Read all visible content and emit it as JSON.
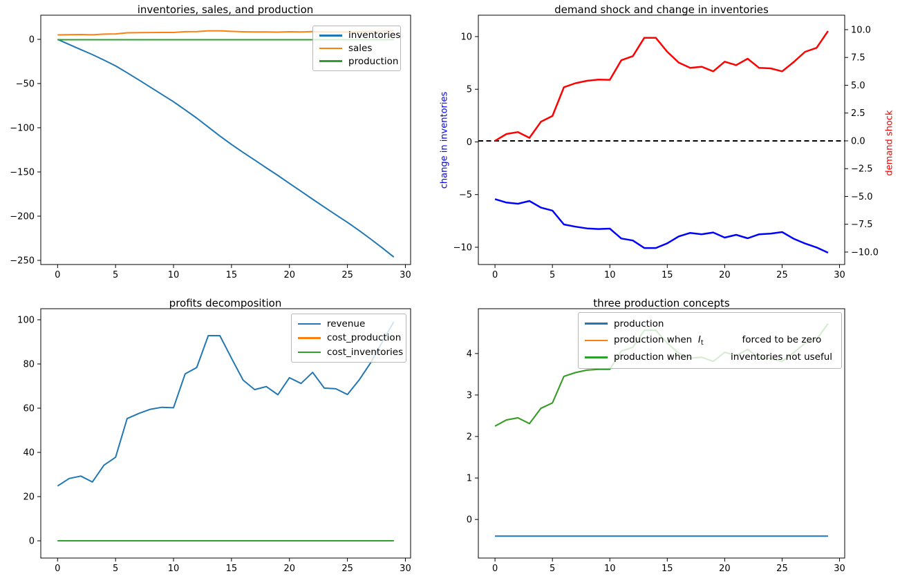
{
  "figure": {
    "background": "#ffffff"
  },
  "palette": {
    "blue": "#1f77b4",
    "orange": "#ff7f0e",
    "green": "#2ca02c",
    "pure_blue": "#0000ff",
    "pure_red": "#ff0000",
    "black": "#000000"
  },
  "chart_data": [
    {
      "id": "inventories-sales-production",
      "type": "line",
      "title": "inventories, sales, and production",
      "x": [
        0,
        1,
        2,
        3,
        4,
        5,
        6,
        7,
        8,
        9,
        10,
        11,
        12,
        13,
        14,
        15,
        16,
        17,
        18,
        19,
        20,
        21,
        22,
        23,
        24,
        25,
        26,
        27,
        28,
        29
      ],
      "x_axis": {
        "range": [
          -1.45,
          30.45
        ],
        "ticks": [
          {
            "v": 0,
            "label": "0"
          },
          {
            "v": 5,
            "label": "5"
          },
          {
            "v": 10,
            "label": "10"
          },
          {
            "v": 15,
            "label": "15"
          },
          {
            "v": 20,
            "label": "20"
          },
          {
            "v": 25,
            "label": "25"
          },
          {
            "v": 30,
            "label": "30"
          }
        ]
      },
      "axes": [
        {
          "side": "left",
          "range": [
            -254.7,
            27.3
          ],
          "ticks": [
            {
              "v": 0,
              "label": "0"
            },
            {
              "v": -50,
              "label": "−50"
            },
            {
              "v": -100,
              "label": "−100"
            },
            {
              "v": -150,
              "label": "−150"
            },
            {
              "v": -200,
              "label": "−200"
            },
            {
              "v": -250,
              "label": "−250"
            }
          ]
        }
      ],
      "series": [
        {
          "name": "inventories",
          "color": "#1f77b4",
          "axis": 0,
          "width": 2,
          "values": [
            0,
            -5.8,
            -11.6,
            -17.2,
            -23.5,
            -30.0,
            -37.8,
            -45.9,
            -54.1,
            -62.4,
            -70.6,
            -79.8,
            -89.1,
            -99.2,
            -109.3,
            -118.9,
            -127.9,
            -136.5,
            -145.3,
            -153.9,
            -163.0,
            -171.8,
            -180.9,
            -189.7,
            -198.4,
            -207.0,
            -216.2,
            -225.8,
            -235.8,
            -246.3
          ]
        },
        {
          "name": "sales",
          "color": "#ff7f0e",
          "axis": 0,
          "width": 2,
          "values": [
            5.0,
            5.31,
            5.4,
            5.13,
            5.86,
            6.12,
            7.41,
            7.59,
            7.7,
            7.75,
            7.75,
            8.62,
            8.81,
            9.63,
            9.63,
            9.0,
            8.52,
            8.28,
            8.33,
            8.13,
            8.56,
            8.4,
            8.7,
            8.28,
            8.26,
            8.13,
            8.54,
            9.0,
            9.18,
            9.94
          ]
        },
        {
          "name": "production",
          "color": "#2ca02c",
          "axis": 0,
          "width": 2,
          "values": [
            -0.4,
            -0.4,
            -0.4,
            -0.4,
            -0.4,
            -0.4,
            -0.4,
            -0.4,
            -0.4,
            -0.4,
            -0.4,
            -0.4,
            -0.4,
            -0.4,
            -0.4,
            -0.4,
            -0.4,
            -0.4,
            -0.4,
            -0.4,
            -0.4,
            -0.4,
            -0.4,
            -0.4,
            -0.4,
            -0.4,
            -0.4,
            -0.4,
            -0.4,
            -0.4
          ]
        }
      ],
      "legend": {
        "position": "upper right",
        "entries": [
          {
            "label": "inventories",
            "color": "#1f77b4"
          },
          {
            "label": "sales",
            "color": "#ff7f0e"
          },
          {
            "label": "production",
            "color": "#2ca02c"
          }
        ]
      }
    },
    {
      "id": "demand-shock-change-in-inventories",
      "type": "line",
      "title": "demand shock and change in inventories",
      "x": [
        0,
        1,
        2,
        3,
        4,
        5,
        6,
        7,
        8,
        9,
        10,
        11,
        12,
        13,
        14,
        15,
        16,
        17,
        18,
        19,
        20,
        21,
        22,
        23,
        24,
        25,
        26,
        27,
        28,
        29
      ],
      "x_axis": {
        "range": [
          -1.45,
          30.45
        ],
        "ticks": [
          {
            "v": 0,
            "label": "0"
          },
          {
            "v": 5,
            "label": "5"
          },
          {
            "v": 10,
            "label": "10"
          },
          {
            "v": 15,
            "label": "15"
          },
          {
            "v": 20,
            "label": "20"
          },
          {
            "v": 25,
            "label": "25"
          },
          {
            "v": 30,
            "label": "30"
          }
        ]
      },
      "axes": [
        {
          "side": "left",
          "range": [
            -11.64,
            12.03
          ],
          "label": "change in inventories",
          "label_color": "#0000ff",
          "ticks": [
            {
              "v": 10,
              "label": "10"
            },
            {
              "v": 5,
              "label": "5"
            },
            {
              "v": 0,
              "label": "0"
            },
            {
              "v": -5,
              "label": "−5"
            },
            {
              "v": -10,
              "label": "−10"
            }
          ]
        },
        {
          "side": "right",
          "range": [
            -11.12,
            11.3
          ],
          "label": "demand shock",
          "label_color": "#ff0000",
          "ticks": [
            {
              "v": 10,
              "label": "10.0"
            },
            {
              "v": 7.5,
              "label": "7.5"
            },
            {
              "v": 5,
              "label": "5.0"
            },
            {
              "v": 2.5,
              "label": "2.5"
            },
            {
              "v": 0,
              "label": "0.0"
            },
            {
              "v": -2.5,
              "label": "−2.5"
            },
            {
              "v": -5,
              "label": "−5.0"
            },
            {
              "v": -7.5,
              "label": "−7.5"
            },
            {
              "v": -10,
              "label": "−10.0"
            }
          ]
        }
      ],
      "zero_line": {
        "value": 0,
        "axis": 1,
        "color": "#000000",
        "dashed": true,
        "width": 2
      },
      "series": [
        {
          "name": "change in inventories",
          "color": "#0000ff",
          "axis": 0,
          "width": 2.5,
          "values": [
            -5.43,
            -5.76,
            -5.87,
            -5.61,
            -6.24,
            -6.52,
            -7.84,
            -8.05,
            -8.21,
            -8.27,
            -8.23,
            -9.17,
            -9.36,
            -10.07,
            -10.07,
            -9.63,
            -8.97,
            -8.64,
            -8.77,
            -8.6,
            -9.08,
            -8.82,
            -9.15,
            -8.77,
            -8.71,
            -8.56,
            -9.19,
            -9.65,
            -10.02,
            -10.52
          ]
        },
        {
          "name": "demand shock",
          "color": "#ff0000",
          "axis": 1,
          "width": 2.5,
          "values": [
            0.0,
            0.62,
            0.79,
            0.27,
            1.72,
            2.24,
            4.82,
            5.18,
            5.4,
            5.51,
            5.49,
            7.25,
            7.62,
            9.27,
            9.27,
            8.01,
            7.04,
            6.56,
            6.67,
            6.25,
            7.12,
            6.81,
            7.39,
            6.56,
            6.52,
            6.25,
            7.08,
            8.01,
            8.36,
            9.88
          ]
        }
      ]
    },
    {
      "id": "profits-decomposition",
      "type": "line",
      "title": "profits decomposition",
      "x": [
        0,
        1,
        2,
        3,
        4,
        5,
        6,
        7,
        8,
        9,
        10,
        11,
        12,
        13,
        14,
        15,
        16,
        17,
        18,
        19,
        20,
        21,
        22,
        23,
        24,
        25,
        26,
        27,
        28,
        29
      ],
      "x_axis": {
        "range": [
          -1.45,
          30.45
        ],
        "ticks": [
          {
            "v": 0,
            "label": "0"
          },
          {
            "v": 5,
            "label": "5"
          },
          {
            "v": 10,
            "label": "10"
          },
          {
            "v": 15,
            "label": "15"
          },
          {
            "v": 20,
            "label": "20"
          },
          {
            "v": 25,
            "label": "25"
          },
          {
            "v": 30,
            "label": "30"
          }
        ]
      },
      "axes": [
        {
          "side": "left",
          "range": [
            -7.8,
            105
          ],
          "ticks": [
            {
              "v": 0,
              "label": "0"
            },
            {
              "v": 20,
              "label": "20"
            },
            {
              "v": 40,
              "label": "40"
            },
            {
              "v": 60,
              "label": "60"
            },
            {
              "v": 80,
              "label": "80"
            },
            {
              "v": 100,
              "label": "100"
            }
          ]
        }
      ],
      "series": [
        {
          "name": "revenue",
          "color": "#1f77b4",
          "axis": 0,
          "width": 2,
          "values": [
            24.8,
            28.2,
            29.3,
            26.6,
            34.2,
            37.8,
            55.3,
            57.6,
            59.5,
            60.4,
            60.2,
            75.5,
            78.4,
            92.8,
            92.8,
            82.6,
            72.7,
            68.4,
            69.8,
            66.1,
            73.8,
            71.2,
            76.2,
            69.1,
            68.8,
            66.2,
            72.7,
            80.5,
            89.9,
            99.1
          ]
        },
        {
          "name": "cost_production",
          "color": "#ff7f0e",
          "axis": 0,
          "width": 2,
          "values": [
            0,
            0,
            0,
            0,
            0,
            0,
            0,
            0,
            0,
            0,
            0,
            0,
            0,
            0,
            0,
            0,
            0,
            0,
            0,
            0,
            0,
            0,
            0,
            0,
            0,
            0,
            0,
            0,
            0,
            0
          ]
        },
        {
          "name": "cost_inventories",
          "color": "#2ca02c",
          "axis": 0,
          "width": 2,
          "values": [
            0,
            0,
            0,
            0,
            0,
            0,
            0,
            0,
            0,
            0,
            0,
            0,
            0,
            0,
            0,
            0,
            0,
            0,
            0,
            0,
            0,
            0,
            0,
            0,
            0,
            0,
            0,
            0,
            0,
            0
          ]
        }
      ],
      "legend": {
        "position": "upper right",
        "entries": [
          {
            "label": "revenue",
            "color": "#1f77b4"
          },
          {
            "label": "cost_production",
            "color": "#ff7f0e"
          },
          {
            "label": "cost_inventories",
            "color": "#2ca02c"
          }
        ]
      }
    },
    {
      "id": "three-production-concepts",
      "type": "line",
      "title": "three production concepts",
      "x": [
        0,
        1,
        2,
        3,
        4,
        5,
        6,
        7,
        8,
        9,
        10,
        11,
        12,
        13,
        14,
        15,
        16,
        17,
        18,
        19,
        20,
        21,
        22,
        23,
        24,
        25,
        26,
        27,
        28,
        29
      ],
      "x_axis": {
        "range": [
          -1.45,
          30.45
        ],
        "ticks": [
          {
            "v": 0,
            "label": "0"
          },
          {
            "v": 5,
            "label": "5"
          },
          {
            "v": 10,
            "label": "10"
          },
          {
            "v": 15,
            "label": "15"
          },
          {
            "v": 20,
            "label": "20"
          },
          {
            "v": 25,
            "label": "25"
          },
          {
            "v": 30,
            "label": "30"
          }
        ]
      },
      "axes": [
        {
          "side": "left",
          "range": [
            -0.93,
            5.08
          ],
          "ticks": [
            {
              "v": 0,
              "label": "0"
            },
            {
              "v": 1,
              "label": "1"
            },
            {
              "v": 2,
              "label": "2"
            },
            {
              "v": 3,
              "label": "3"
            },
            {
              "v": 4,
              "label": "4"
            }
          ]
        }
      ],
      "series": [
        {
          "name": "production",
          "color": "#1f77b4",
          "axis": 0,
          "width": 2,
          "values": [
            -0.4,
            -0.4,
            -0.4,
            -0.4,
            -0.4,
            -0.4,
            -0.4,
            -0.4,
            -0.4,
            -0.4,
            -0.4,
            -0.4,
            -0.4,
            -0.4,
            -0.4,
            -0.4,
            -0.4,
            -0.4,
            -0.4,
            -0.4,
            -0.4,
            -0.4,
            -0.4,
            -0.4,
            -0.4,
            -0.4,
            -0.4,
            -0.4,
            -0.4,
            -0.4
          ]
        },
        {
          "name": "production when I_t forced to be zero",
          "color": "#ff7f0e",
          "axis": 0,
          "width": 2,
          "values": [
            2.25,
            2.4,
            2.45,
            2.31,
            2.68,
            2.81,
            3.45,
            3.54,
            3.6,
            3.62,
            3.62,
            4.06,
            4.15,
            4.56,
            4.56,
            4.25,
            4.01,
            3.89,
            3.91,
            3.81,
            4.03,
            3.95,
            4.1,
            3.89,
            3.88,
            3.81,
            4.02,
            4.25,
            4.34,
            4.72
          ]
        },
        {
          "name": "production when inventories not useful",
          "color": "#2ca02c",
          "axis": 0,
          "width": 2,
          "values": [
            2.25,
            2.4,
            2.45,
            2.31,
            2.68,
            2.81,
            3.45,
            3.54,
            3.6,
            3.62,
            3.62,
            4.06,
            4.15,
            4.56,
            4.56,
            4.25,
            4.01,
            3.89,
            3.91,
            3.81,
            4.03,
            3.95,
            4.1,
            3.89,
            3.88,
            3.81,
            4.02,
            4.25,
            4.34,
            4.72
          ]
        }
      ],
      "legend": {
        "position": "upper center",
        "entries": [
          {
            "label": "production",
            "color": "#1f77b4"
          },
          {
            "color": "#ff7f0e",
            "parts": [
              {
                "text": "production when  ",
                "style": "normal"
              },
              {
                "text": "I",
                "style": "italic"
              },
              {
                "text": "t",
                "style": "sub"
              },
              {
                "text": "             forced to be zero",
                "style": "normal"
              }
            ]
          },
          {
            "color": "#2ca02c",
            "parts": [
              {
                "text": "production when             inventories not useful",
                "style": "normal"
              }
            ]
          }
        ]
      }
    }
  ]
}
